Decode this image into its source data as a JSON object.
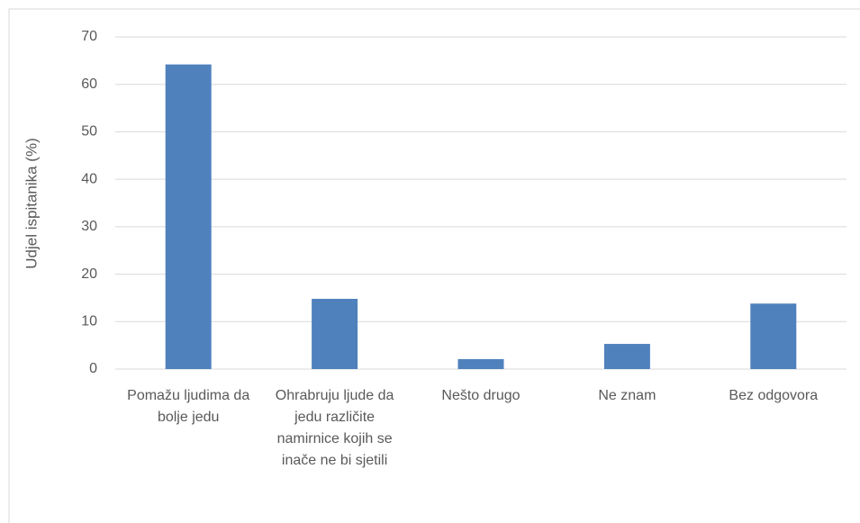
{
  "chart_data": {
    "type": "bar",
    "y_label": "Udjel ispitanika (%)",
    "categories": [
      "Pomažu ljudima da bolje jedu",
      "Ohrabruju ljude da jedu različite namirnice kojih se inače ne bi sjetili",
      "Nešto drugo",
      "Ne znam",
      "Bez odgovora"
    ],
    "values": [
      64.2,
      14.8,
      2.1,
      5.3,
      13.8
    ],
    "color": "#4f81bd",
    "ylim": [
      0,
      70
    ],
    "yticks": [
      0,
      10,
      20,
      30,
      40,
      50,
      60,
      70
    ],
    "grid": true
  }
}
